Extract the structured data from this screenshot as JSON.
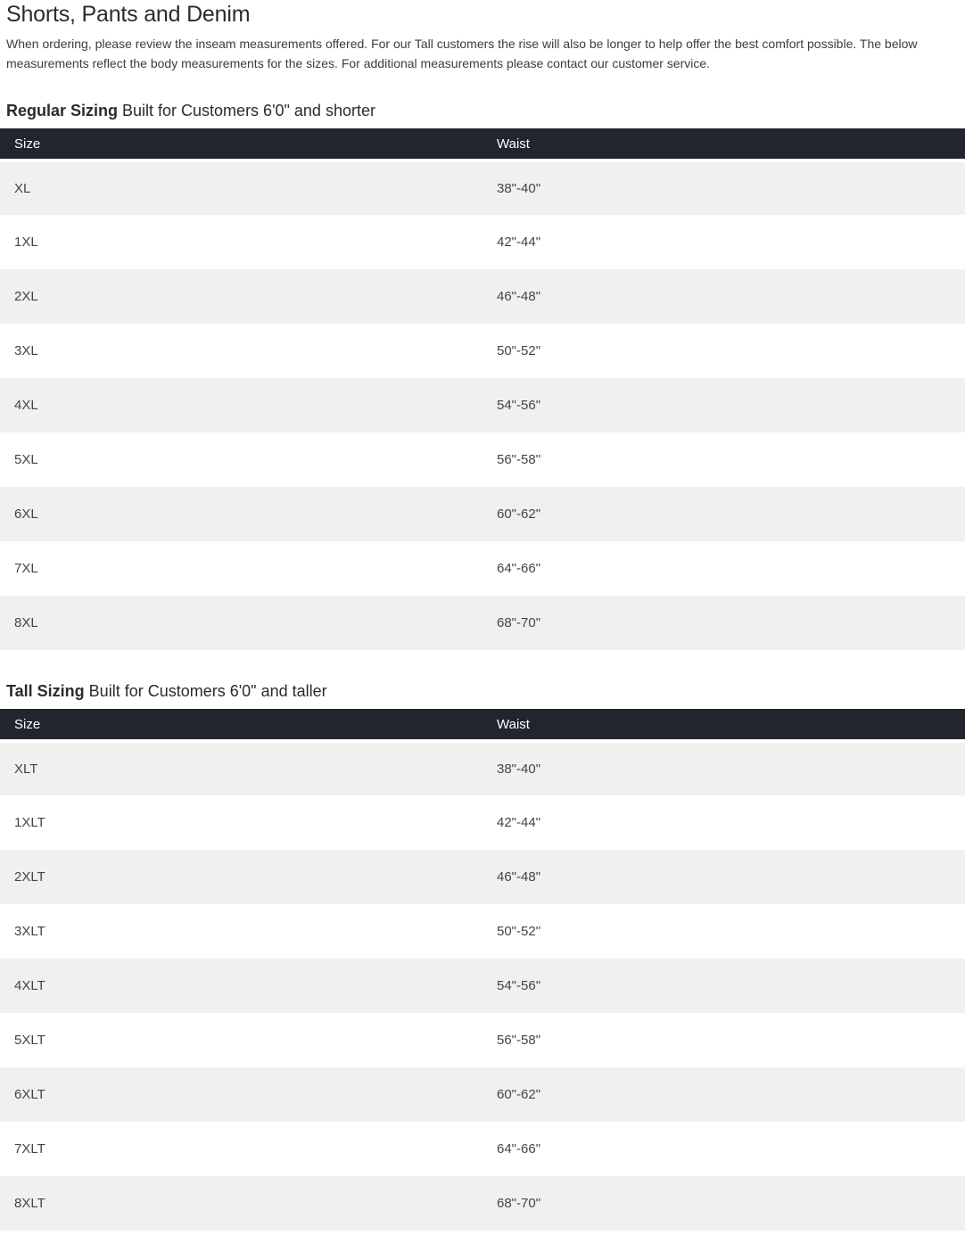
{
  "page": {
    "title": "Shorts, Pants and Denim",
    "description": "When ordering, please review the inseam measurements offered. For our Tall customers the rise will also be longer to help offer the best comfort possible. The below measurements reflect the body measurements for the sizes. For additional measurements please contact our customer service."
  },
  "colors": {
    "table_header_bg": "#22252d",
    "table_header_text": "#ffffff",
    "row_stripe": "#f0f0f1",
    "body_text": "#333333"
  },
  "sections": {
    "regular": {
      "heading_bold": "Regular Sizing",
      "heading_rest": " Built for Customers 6'0\" and shorter",
      "columns": {
        "size": "Size",
        "waist": "Waist"
      },
      "rows": {
        "0": {
          "size": "XL",
          "waist": "38\"-40\""
        },
        "1": {
          "size": "1XL",
          "waist": "42\"-44\""
        },
        "2": {
          "size": "2XL",
          "waist": "46\"-48\""
        },
        "3": {
          "size": "3XL",
          "waist": "50\"-52\""
        },
        "4": {
          "size": "4XL",
          "waist": "54\"-56\""
        },
        "5": {
          "size": "5XL",
          "waist": "56\"-58\""
        },
        "6": {
          "size": "6XL",
          "waist": "60\"-62\""
        },
        "7": {
          "size": "7XL",
          "waist": "64\"-66\""
        },
        "8": {
          "size": "8XL",
          "waist": "68\"-70\""
        }
      }
    },
    "tall": {
      "heading_bold": "Tall Sizing",
      "heading_rest": " Built for Customers 6'0\" and taller",
      "columns": {
        "size": "Size",
        "waist": "Waist"
      },
      "rows": {
        "0": {
          "size": "XLT",
          "waist": "38\"-40\""
        },
        "1": {
          "size": "1XLT",
          "waist": "42\"-44\""
        },
        "2": {
          "size": "2XLT",
          "waist": "46\"-48\""
        },
        "3": {
          "size": "3XLT",
          "waist": "50\"-52\""
        },
        "4": {
          "size": "4XLT",
          "waist": "54\"-56\""
        },
        "5": {
          "size": "5XLT",
          "waist": "56\"-58\""
        },
        "6": {
          "size": "6XLT",
          "waist": "60\"-62\""
        },
        "7": {
          "size": "7XLT",
          "waist": "64\"-66\""
        },
        "8": {
          "size": "8XLT",
          "waist": "68\"-70\""
        }
      }
    }
  }
}
